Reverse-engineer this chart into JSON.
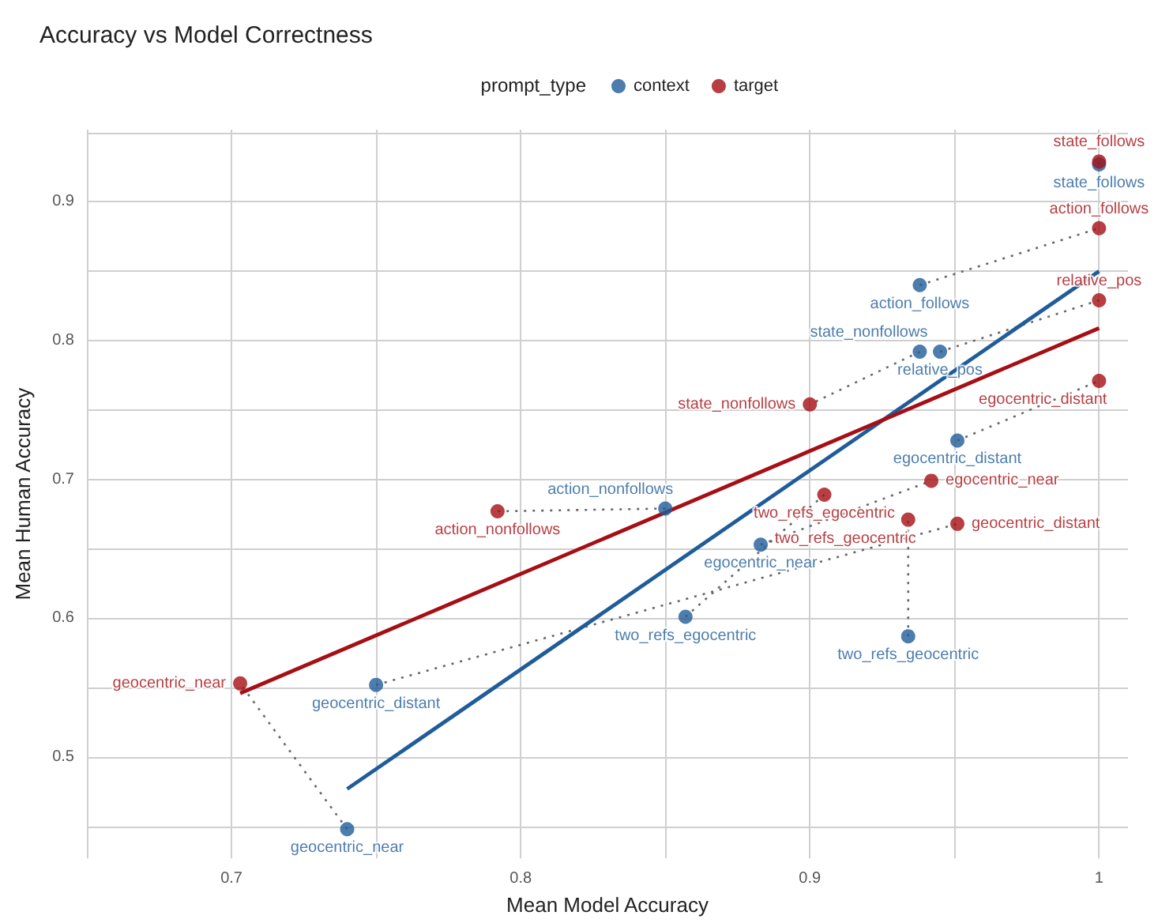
{
  "chart_data": {
    "type": "scatter",
    "title": "Accuracy vs Model Correctness",
    "xlabel": "Mean Model Accuracy",
    "ylabel": "Mean Human Accuracy",
    "legend_title": "prompt_type",
    "legend": "top",
    "grid": true,
    "marker": "circle",
    "xlim": [
      0.65,
      1.01
    ],
    "ylim": [
      0.427,
      0.952
    ],
    "xticks": [
      {
        "value": 0.65,
        "label": null
      },
      0.7,
      {
        "value": 0.75,
        "label": null
      },
      0.8,
      {
        "value": 0.85,
        "label": null
      },
      0.9,
      {
        "value": 0.95,
        "label": null
      },
      1.0
    ],
    "yticks": [
      {
        "value": 0.45,
        "label": null
      },
      0.5,
      {
        "value": 0.55,
        "label": null
      },
      0.6,
      {
        "value": 0.65,
        "label": null
      },
      0.7,
      {
        "value": 0.75,
        "label": null
      },
      0.8,
      {
        "value": 0.85,
        "label": null
      },
      0.9,
      {
        "value": 0.95,
        "label": null
      }
    ],
    "series": [
      {
        "name": "context",
        "color": "#1f5c99",
        "x": [
          1.0,
          0.938,
          0.938,
          0.945,
          0.951,
          0.85,
          0.883,
          0.857,
          0.934,
          0.75,
          0.74
        ],
        "values": [
          0.927,
          0.84,
          0.792,
          0.792,
          0.728,
          0.679,
          0.653,
          0.601,
          0.587,
          0.552,
          0.448
        ],
        "value_labels": [
          "state_follows",
          "action_follows",
          "state_nonfollows",
          "relative_pos",
          "egocentric_distant",
          "action_nonfollows",
          "egocentric_near",
          "two_refs_egocentric",
          "two_refs_geocentric",
          "geocentric_distant",
          "geocentric_near"
        ]
      },
      {
        "name": "target",
        "color": "#a50f15",
        "x": [
          1.0,
          1.0,
          0.9,
          1.0,
          1.0,
          0.792,
          0.942,
          0.905,
          0.934,
          0.951,
          0.703
        ],
        "values": [
          0.929,
          0.881,
          0.754,
          0.829,
          0.771,
          0.677,
          0.699,
          0.689,
          0.671,
          0.668,
          0.553
        ],
        "value_labels": [
          "state_follows",
          "action_follows",
          "state_nonfollows",
          "relative_pos",
          "egocentric_distant",
          "action_nonfollows",
          "egocentric_near",
          "two_refs_egocentric",
          "two_refs_geocentric",
          "geocentric_distant",
          "geocentric_near"
        ]
      },
      {
        "type": "line",
        "marker": "none",
        "color": "#1f5c99",
        "x": [
          0.74,
          1.0
        ],
        "values": [
          0.477,
          0.85
        ]
      },
      {
        "type": "line",
        "marker": "none",
        "color": "#a50f15",
        "x": [
          0.703,
          1.0
        ],
        "values": [
          0.546,
          0.809
        ]
      }
    ]
  }
}
